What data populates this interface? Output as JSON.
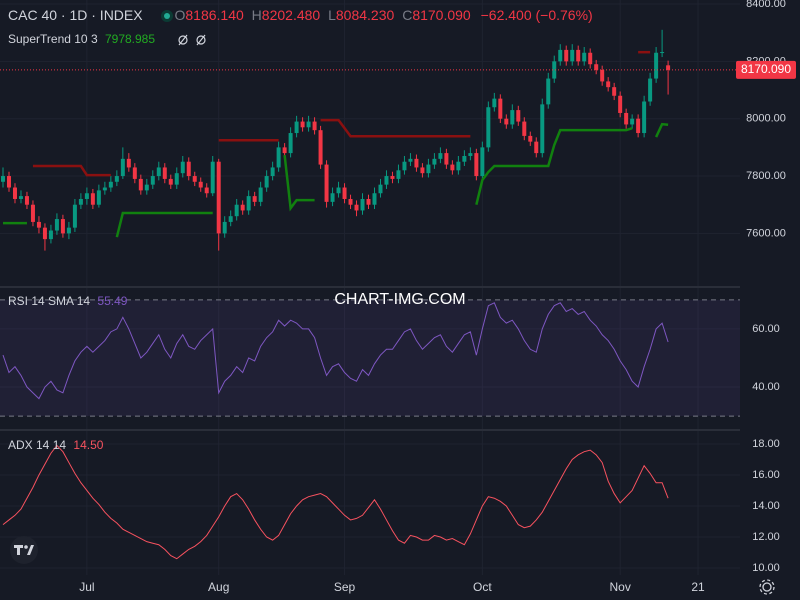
{
  "chart_data": [
    {
      "type": "candlestick",
      "title": "CAC 40 · 1D · INDEX",
      "ohlc": [
        {
          "key": "O",
          "label": "8186.140"
        },
        {
          "key": "H",
          "label": "8202.480"
        },
        {
          "key": "L",
          "label": "8084.230"
        },
        {
          "key": "C",
          "label": "8170.090"
        }
      ],
      "change_label": "−62.400 (−0.76%)",
      "last_price_label": "8170.090",
      "up_color": "#089981",
      "down_color": "#f23645",
      "open": [
        7780,
        7800,
        7760,
        7720,
        7730,
        7700,
        7640,
        7620,
        7580,
        7610,
        7650,
        7600,
        7620,
        7700,
        7720,
        7740,
        7700,
        7750,
        7760,
        7780,
        7800,
        7860,
        7830,
        7790,
        7750,
        7770,
        7800,
        7830,
        7790,
        7770,
        7810,
        7850,
        7800,
        7780,
        7760,
        7740,
        7850,
        7600,
        7640,
        7660,
        7700,
        7680,
        7730,
        7710,
        7760,
        7800,
        7830,
        7900,
        7880,
        7950,
        7990,
        7970,
        7990,
        7960,
        7840,
        7710,
        7740,
        7760,
        7720,
        7700,
        7680,
        7720,
        7700,
        7740,
        7770,
        7800,
        7790,
        7820,
        7850,
        7860,
        7830,
        7810,
        7840,
        7860,
        7880,
        7840,
        7820,
        7850,
        7870,
        7880,
        7800,
        7900,
        8040,
        8070,
        8000,
        7980,
        8030,
        7990,
        7940,
        7920,
        7880,
        8050,
        8140,
        8200,
        8240,
        8200,
        8240,
        8200,
        8230,
        8190,
        8170,
        8130,
        8110,
        8080,
        8020,
        7980,
        8000,
        7950,
        8060,
        8140,
        8230,
        8186.14
      ],
      "high": [
        7830,
        7815,
        7775,
        7750,
        7745,
        7715,
        7660,
        7635,
        7630,
        7670,
        7665,
        7640,
        7720,
        7740,
        7760,
        7755,
        7770,
        7780,
        7800,
        7820,
        7900,
        7880,
        7845,
        7805,
        7790,
        7820,
        7850,
        7845,
        7805,
        7830,
        7870,
        7865,
        7815,
        7795,
        7775,
        7870,
        7860,
        7660,
        7680,
        7720,
        7715,
        7750,
        7745,
        7780,
        7820,
        7850,
        7920,
        7915,
        7970,
        8010,
        8005,
        8010,
        8005,
        7975,
        7855,
        7760,
        7780,
        7775,
        7735,
        7715,
        7740,
        7735,
        7760,
        7790,
        7820,
        7815,
        7840,
        7870,
        7880,
        7875,
        7845,
        7860,
        7880,
        7900,
        7895,
        7855,
        7870,
        7890,
        7900,
        7895,
        7920,
        8060,
        8090,
        8085,
        8015,
        8050,
        8045,
        8005,
        7955,
        7935,
        8070,
        8160,
        8220,
        8260,
        8255,
        8260,
        8255,
        8250,
        8245,
        8205,
        8185,
        8145,
        8125,
        8095,
        8035,
        8015,
        8015,
        8080,
        8160,
        8250,
        8310,
        8202.48
      ],
      "low": [
        7760,
        7745,
        7705,
        7705,
        7685,
        7625,
        7600,
        7540,
        7565,
        7595,
        7585,
        7580,
        7605,
        7685,
        7700,
        7685,
        7690,
        7735,
        7745,
        7765,
        7790,
        7815,
        7775,
        7735,
        7735,
        7755,
        7785,
        7775,
        7755,
        7755,
        7795,
        7785,
        7765,
        7745,
        7725,
        7730,
        7540,
        7585,
        7625,
        7645,
        7665,
        7665,
        7695,
        7695,
        7745,
        7785,
        7815,
        7865,
        7865,
        7935,
        7955,
        7955,
        7945,
        7825,
        7690,
        7695,
        7725,
        7705,
        7685,
        7660,
        7665,
        7685,
        7685,
        7725,
        7755,
        7775,
        7775,
        7805,
        7835,
        7815,
        7795,
        7795,
        7825,
        7845,
        7825,
        7805,
        7805,
        7835,
        7855,
        7785,
        7785,
        7885,
        8025,
        7985,
        7965,
        7965,
        7975,
        7925,
        7905,
        7865,
        7865,
        8035,
        8125,
        8185,
        8185,
        8185,
        8185,
        8185,
        8175,
        8155,
        8115,
        8095,
        8065,
        8005,
        7965,
        7965,
        7935,
        7935,
        8045,
        8125,
        8215,
        8084.23
      ],
      "close": [
        7800,
        7760,
        7720,
        7730,
        7700,
        7640,
        7620,
        7580,
        7610,
        7650,
        7600,
        7620,
        7700,
        7720,
        7740,
        7700,
        7750,
        7760,
        7780,
        7800,
        7860,
        7830,
        7790,
        7750,
        7770,
        7800,
        7830,
        7790,
        7770,
        7810,
        7850,
        7800,
        7780,
        7760,
        7740,
        7850,
        7600,
        7640,
        7660,
        7700,
        7680,
        7730,
        7710,
        7760,
        7800,
        7830,
        7900,
        7880,
        7950,
        7990,
        7970,
        7990,
        7960,
        7840,
        7710,
        7740,
        7760,
        7720,
        7700,
        7680,
        7720,
        7700,
        7740,
        7770,
        7800,
        7790,
        7820,
        7850,
        7860,
        7830,
        7810,
        7840,
        7860,
        7880,
        7840,
        7820,
        7850,
        7870,
        7880,
        7800,
        7900,
        8040,
        8070,
        8000,
        7980,
        8030,
        7990,
        7940,
        7920,
        7880,
        8050,
        8140,
        8200,
        8240,
        8200,
        8240,
        8200,
        8230,
        8190,
        8170,
        8130,
        8110,
        8080,
        8020,
        7980,
        8000,
        7950,
        8060,
        8140,
        8230,
        8232.49,
        8170.09
      ],
      "supertrend": {
        "label": "SuperTrend 10 3",
        "value_label": "7978.985",
        "up_color": "#11810f",
        "down_color": "#8a1010",
        "up": [
          7636,
          7636,
          7636,
          7636,
          7636,
          null,
          null,
          null,
          null,
          null,
          null,
          null,
          null,
          null,
          null,
          null,
          null,
          null,
          null,
          7587,
          7671,
          7671,
          7671,
          7671,
          7671,
          7671,
          7671,
          7671,
          7671,
          7671,
          7671,
          7671,
          7671,
          7671,
          7671,
          7671,
          null,
          null,
          null,
          null,
          null,
          null,
          null,
          null,
          null,
          null,
          null,
          7873,
          7688,
          7716,
          7716,
          7716,
          7716,
          null,
          null,
          null,
          null,
          null,
          null,
          null,
          null,
          null,
          null,
          null,
          null,
          null,
          null,
          null,
          null,
          null,
          null,
          null,
          null,
          null,
          null,
          null,
          null,
          null,
          null,
          7700,
          7786,
          7814,
          7835,
          7835,
          7835,
          7835,
          7835,
          7835,
          7835,
          7835,
          7835,
          7835,
          7908,
          7960,
          7960,
          7960,
          7960,
          7960,
          7960,
          7960,
          7960,
          7960,
          7960,
          7960,
          7960,
          7967,
          null,
          null,
          null,
          7936,
          7981,
          7978.985
        ],
        "down": [
          null,
          null,
          null,
          null,
          null,
          7835,
          7835,
          7835,
          7835,
          7835,
          7835,
          7835,
          7835,
          7835,
          7803,
          7803,
          7803,
          7803,
          7803,
          null,
          null,
          null,
          null,
          null,
          null,
          null,
          null,
          null,
          null,
          null,
          null,
          null,
          null,
          null,
          null,
          null,
          7925,
          7925,
          7925,
          7925,
          7925,
          7925,
          7925,
          7925,
          7925,
          7925,
          7925,
          null,
          null,
          null,
          null,
          null,
          null,
          7995,
          7995,
          7995,
          7995,
          7967,
          7939,
          7939,
          7939,
          7939,
          7939,
          7939,
          7939,
          7939,
          7939,
          7939,
          7939,
          7939,
          7939,
          7939,
          7939,
          7939,
          7939,
          7939,
          7939,
          7939,
          7939,
          null,
          null,
          null,
          null,
          null,
          null,
          null,
          null,
          null,
          null,
          null,
          null,
          null,
          null,
          null,
          null,
          null,
          null,
          null,
          null,
          null,
          null,
          null,
          null,
          null,
          null,
          null,
          8232,
          8232,
          8232,
          null,
          null,
          null
        ]
      },
      "xlim": [
        -0.5,
        123
      ],
      "xticks": [
        {
          "value": 14,
          "label": "Jul"
        },
        {
          "value": 36,
          "label": "Aug"
        },
        {
          "value": 57,
          "label": "Sep"
        },
        {
          "value": 80,
          "label": "Oct"
        },
        {
          "value": 103,
          "label": "Nov"
        },
        {
          "value": 116,
          "label": "21"
        }
      ],
      "ylim": [
        7420,
        8414
      ],
      "yticks": [
        {
          "value": 7600,
          "label": "7600.00"
        },
        {
          "value": 7800,
          "label": "7800.00"
        },
        {
          "value": 8000,
          "label": "8000.00"
        },
        {
          "value": 8200,
          "label": "8200.00"
        },
        {
          "value": 8400,
          "label": "8400.00"
        }
      ],
      "grid": true,
      "watermark": "CHART-IMG.COM"
    },
    {
      "type": "line",
      "title": "RSI 14 SMA 14",
      "value_label": "55.49",
      "color": "#7e57c2",
      "values": [
        51,
        45,
        47,
        44,
        40,
        38,
        36,
        40,
        42,
        39,
        38,
        44,
        49,
        52,
        54,
        52,
        54,
        56,
        59,
        60,
        64,
        60,
        55,
        50,
        52,
        55,
        58,
        53,
        50,
        55,
        58,
        54,
        53,
        56,
        58,
        60,
        38,
        42,
        44,
        47,
        45,
        50,
        49,
        54,
        57,
        59,
        63,
        61,
        63,
        62,
        60,
        60,
        57,
        50,
        44,
        47,
        48,
        45,
        43,
        42,
        46,
        44,
        48,
        51,
        53,
        53,
        56,
        59,
        60,
        56,
        53,
        55,
        57,
        58,
        54,
        52,
        55,
        58,
        59,
        51,
        60,
        68,
        69,
        64,
        62,
        63,
        60,
        56,
        53,
        52,
        60,
        65,
        68,
        69,
        66,
        67,
        65,
        66,
        63,
        61,
        58,
        56,
        53,
        49,
        46,
        42,
        40,
        47,
        53,
        60,
        62,
        55.49
      ],
      "ylim": [
        25.9,
        73.4
      ],
      "bands": [
        30,
        70
      ],
      "yticks": [
        {
          "value": 40,
          "label": "40.00"
        },
        {
          "value": 60,
          "label": "60.00"
        }
      ],
      "grid": true
    },
    {
      "type": "line",
      "title": "ADX 14 14",
      "value_label": "14.50",
      "color": "#f7525f",
      "values": [
        12.8,
        13.1,
        13.4,
        13.8,
        14.5,
        15.2,
        16,
        16.7,
        17.4,
        17.9,
        17.5,
        16.8,
        16.1,
        15.5,
        15,
        14.5,
        14.1,
        13.6,
        13.2,
        12.9,
        12.5,
        12.3,
        12.1,
        11.9,
        11.7,
        11.6,
        11.5,
        11.2,
        10.8,
        10.6,
        10.9,
        11.2,
        11.4,
        11.7,
        12.1,
        12.7,
        13.3,
        14,
        14.6,
        14.8,
        14.4,
        13.8,
        13.1,
        12.5,
        12,
        11.8,
        12.1,
        12.8,
        13.5,
        14,
        14.4,
        14.6,
        14.7,
        14.8,
        14.6,
        14.2,
        13.8,
        13.4,
        13.1,
        13.2,
        13.4,
        13.9,
        14.4,
        13.8,
        13.1,
        12.4,
        11.8,
        11.6,
        12.1,
        12,
        11.8,
        11.8,
        12.1,
        12,
        11.8,
        11.9,
        11.7,
        11.5,
        12.2,
        13.1,
        14,
        14.6,
        14.5,
        14.3,
        14,
        13.4,
        12.8,
        12.6,
        12.7,
        13.1,
        13.6,
        14.3,
        15,
        15.7,
        16.4,
        17,
        17.3,
        17.5,
        17.6,
        17.3,
        16.8,
        15.6,
        14.8,
        14.2,
        14.6,
        15,
        15.8,
        16.6,
        16.1,
        15.5,
        15.5,
        14.5
      ],
      "ylim": [
        9.55,
        18.77
      ],
      "yticks": [
        {
          "value": 10,
          "label": "10.00"
        },
        {
          "value": 12,
          "label": "12.00"
        },
        {
          "value": 14,
          "label": "14.00"
        },
        {
          "value": 16,
          "label": "16.00"
        },
        {
          "value": 18,
          "label": "18.00"
        }
      ],
      "grid": true
    }
  ]
}
